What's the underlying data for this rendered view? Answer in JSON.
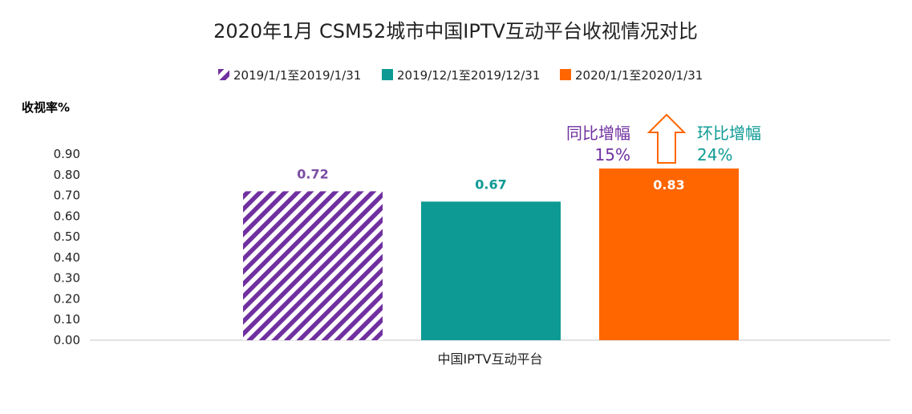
{
  "chart_data": {
    "type": "bar",
    "title": "2020年1月  CSM52城市中国IPTV互动平台收视情况对比",
    "ylabel": "收视率%",
    "xlabel": "",
    "categories": [
      "中国IPTV互动平台"
    ],
    "series": [
      {
        "name": "2019/1/1至2019/1/31",
        "values": [
          0.72
        ],
        "color": "#7030a0",
        "pattern": "diagonal-stripes",
        "label_color": "#7b4ea3"
      },
      {
        "name": "2019/12/1至2019/12/31",
        "values": [
          0.67
        ],
        "color": "#0e9a94",
        "pattern": "solid",
        "label_color": "#0e9a94"
      },
      {
        "name": "2020/1/1至2020/1/31",
        "values": [
          0.83
        ],
        "color": "#ff6600",
        "pattern": "solid",
        "label_color": "#ffffff"
      }
    ],
    "data_labels": [
      "0.72",
      "0.67",
      "0.83"
    ],
    "ylim": [
      0,
      0.9
    ],
    "yticks": [
      "0.00",
      "0.10",
      "0.20",
      "0.30",
      "0.40",
      "0.50",
      "0.60",
      "0.70",
      "0.80",
      "0.90"
    ],
    "grid": false,
    "legend_position": "top",
    "annotations": {
      "yoy_label": "同比增幅",
      "yoy_value": "15%",
      "yoy_color": "#7030a0",
      "mom_label": "环比增幅",
      "mom_value": "24%",
      "mom_color": "#0e9a94",
      "arrow_color": "#ff6600"
    }
  }
}
